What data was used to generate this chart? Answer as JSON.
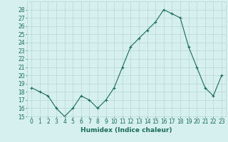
{
  "x": [
    0,
    1,
    2,
    3,
    4,
    5,
    6,
    7,
    8,
    9,
    10,
    11,
    12,
    13,
    14,
    15,
    16,
    17,
    18,
    19,
    20,
    21,
    22,
    23
  ],
  "y": [
    18.5,
    18.0,
    17.5,
    16.0,
    15.0,
    16.0,
    17.5,
    17.0,
    16.0,
    17.0,
    18.5,
    21.0,
    23.5,
    24.5,
    25.5,
    26.5,
    28.0,
    27.5,
    27.0,
    23.5,
    21.0,
    18.5,
    17.5,
    20.0
  ],
  "line_color": "#1a6b5a",
  "marker": "+",
  "marker_size": 3,
  "marker_lw": 0.8,
  "bg_color": "#d5f0ee",
  "grid_color": "#b8d8d4",
  "xlabel": "Humidex (Indice chaleur)",
  "ylim": [
    15,
    29
  ],
  "xlim": [
    -0.5,
    23.5
  ],
  "yticks": [
    15,
    16,
    17,
    18,
    19,
    20,
    21,
    22,
    23,
    24,
    25,
    26,
    27,
    28
  ],
  "xticks": [
    0,
    1,
    2,
    3,
    4,
    5,
    6,
    7,
    8,
    9,
    10,
    11,
    12,
    13,
    14,
    15,
    16,
    17,
    18,
    19,
    20,
    21,
    22,
    23
  ],
  "ytick_fontsize": 5.5,
  "xtick_fontsize": 5.5,
  "xlabel_fontsize": 6.5
}
